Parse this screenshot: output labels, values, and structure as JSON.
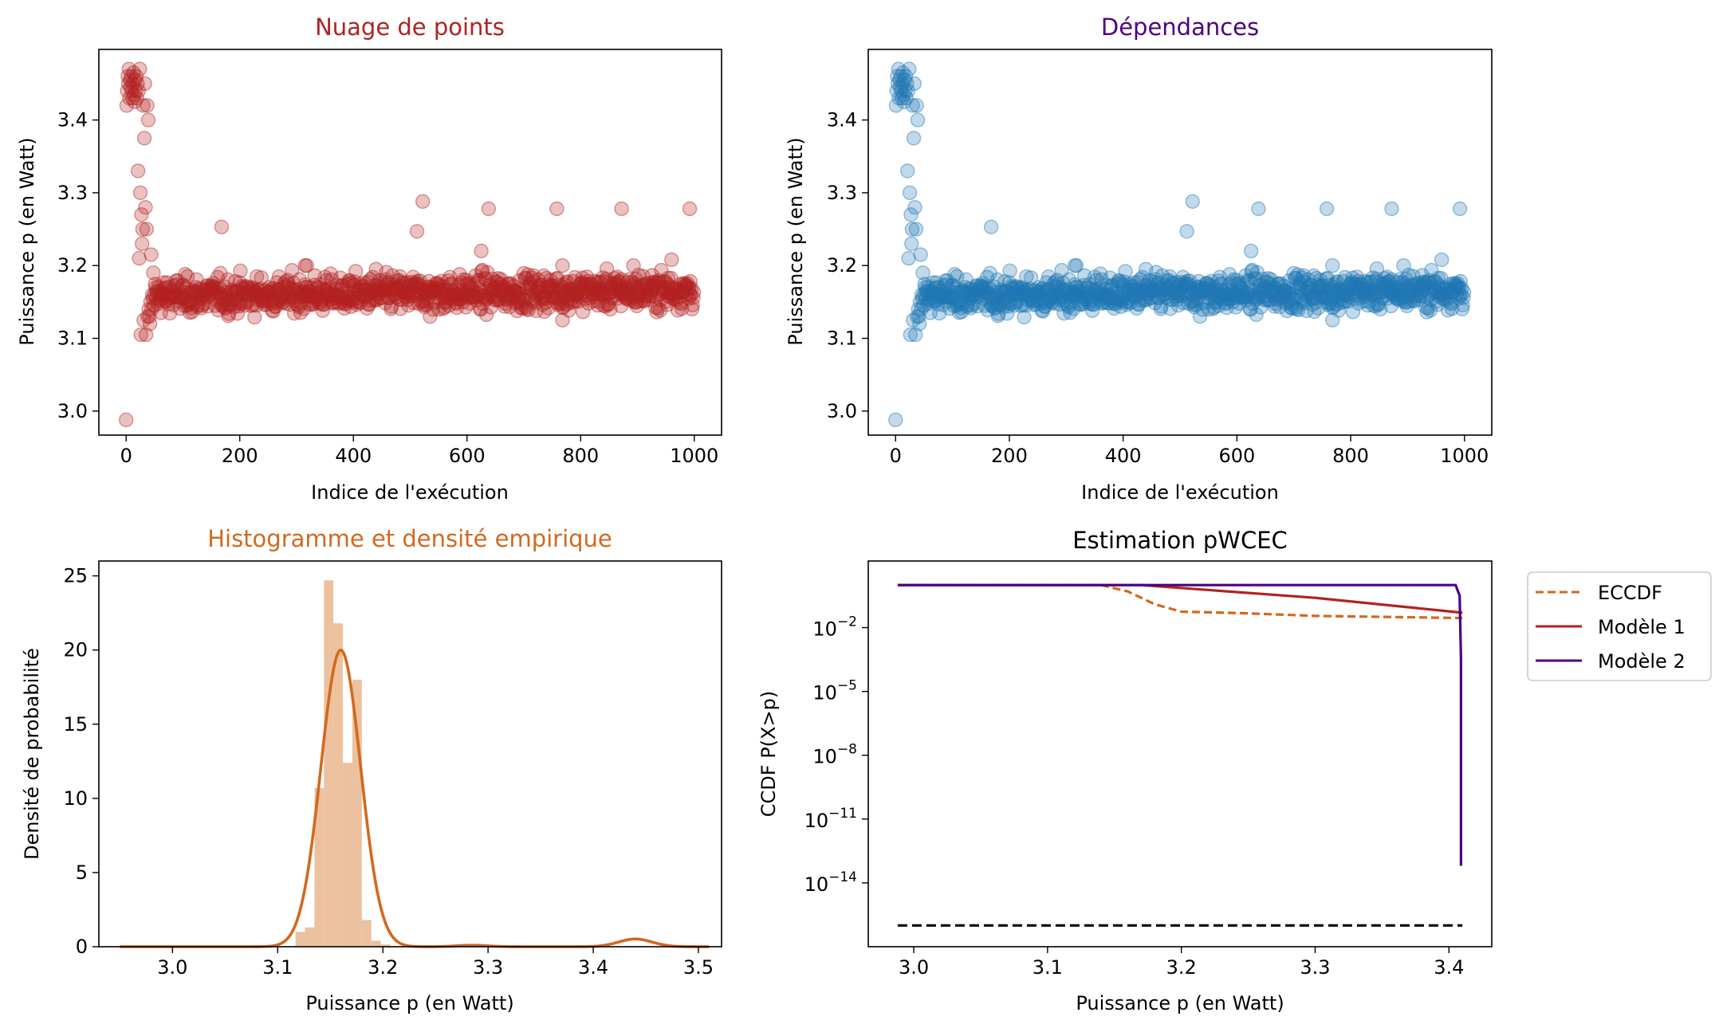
{
  "colors": {
    "scatter_red": "#b22222",
    "scatter_blue": "#1f77b4",
    "orange": "#d2691e",
    "hist_fill": "#ecc19f",
    "purple": "#4b0082",
    "black": "#000000",
    "title_red": "#b22222",
    "title_purple": "#4b0082",
    "title_orange": "#d2691e"
  },
  "chart_data": [
    {
      "type": "scatter",
      "title": "Nuage de points",
      "xlabel": "Indice de l'exécution",
      "ylabel": "Puissance p (en Watt)",
      "xlim": [
        -48,
        1048
      ],
      "ylim": [
        2.967,
        3.497
      ],
      "xticks": [
        0,
        200,
        400,
        600,
        800,
        1000
      ],
      "yticks": [
        3.0,
        3.1,
        3.2,
        3.3,
        3.4
      ],
      "ytick_labels": [
        "3.0",
        "3.1",
        "3.2",
        "3.3",
        "3.4"
      ],
      "n_points": 1000,
      "bulk_center": 3.158,
      "bulk_spread": 0.012,
      "early_points": [
        [
          0,
          2.988
        ],
        [
          1,
          3.42
        ],
        [
          2,
          3.44
        ],
        [
          3,
          3.46
        ],
        [
          4,
          3.45
        ],
        [
          5,
          3.47
        ],
        [
          6,
          3.43
        ],
        [
          7,
          3.455
        ],
        [
          8,
          3.445
        ],
        [
          9,
          3.46
        ],
        [
          10,
          3.44
        ],
        [
          11,
          3.43
        ],
        [
          12,
          3.45
        ],
        [
          13,
          3.465
        ],
        [
          14,
          3.435
        ],
        [
          15,
          3.425
        ],
        [
          16,
          3.455
        ],
        [
          17,
          3.44
        ],
        [
          18,
          3.46
        ],
        [
          19,
          3.43
        ],
        [
          20,
          3.45
        ],
        [
          21,
          3.33
        ],
        [
          22,
          3.44
        ],
        [
          23,
          3.21
        ],
        [
          24,
          3.47
        ],
        [
          25,
          3.3
        ],
        [
          26,
          3.105
        ],
        [
          27,
          3.27
        ],
        [
          28,
          3.23
        ],
        [
          29,
          3.25
        ],
        [
          30,
          3.42
        ],
        [
          31,
          3.125
        ],
        [
          32,
          3.375
        ],
        [
          33,
          3.45
        ],
        [
          34,
          3.28
        ],
        [
          35,
          3.105
        ],
        [
          36,
          3.25
        ],
        [
          37,
          3.42
        ],
        [
          38,
          3.13
        ],
        [
          39,
          3.4
        ],
        [
          40,
          3.14
        ],
        [
          41,
          3.13
        ],
        [
          42,
          3.12
        ],
        [
          43,
          3.15
        ],
        [
          44,
          3.215
        ],
        [
          45,
          3.14
        ],
        [
          46,
          3.16
        ],
        [
          47,
          3.155
        ],
        [
          48,
          3.19
        ],
        [
          49,
          3.145
        ],
        [
          50,
          3.16
        ]
      ],
      "outliers": [
        [
          168,
          3.253
        ],
        [
          512,
          3.247
        ],
        [
          522,
          3.288
        ],
        [
          625,
          3.22
        ],
        [
          638,
          3.278
        ],
        [
          758,
          3.278
        ],
        [
          872,
          3.278
        ],
        [
          992,
          3.278
        ],
        [
          768,
          3.2
        ],
        [
          893,
          3.2
        ],
        [
          960,
          3.208
        ],
        [
          318,
          3.2
        ],
        [
          768,
          3.125
        ],
        [
          315,
          3.2
        ],
        [
          440,
          3.195
        ],
        [
          535,
          3.13
        ]
      ]
    },
    {
      "type": "scatter",
      "title": "Dépendances",
      "xlabel": "Indice de l'exécution",
      "ylabel": "Puissance p (en Watt)",
      "xlim": [
        -48,
        1048
      ],
      "ylim": [
        2.967,
        3.497
      ],
      "xticks": [
        0,
        200,
        400,
        600,
        800,
        1000
      ],
      "yticks": [
        3.0,
        3.1,
        3.2,
        3.3,
        3.4
      ],
      "ytick_labels": [
        "3.0",
        "3.1",
        "3.2",
        "3.3",
        "3.4"
      ],
      "note_same_data_as": 0
    },
    {
      "type": "bar",
      "title": "Histogramme et densité empirique",
      "xlabel": "Puissance p (en Watt)",
      "ylabel": "Densité de probabilité",
      "xlim": [
        2.93,
        3.522
      ],
      "ylim": [
        0,
        26
      ],
      "xticks": [
        3.0,
        3.1,
        3.2,
        3.3,
        3.4,
        3.5
      ],
      "xtick_labels": [
        "3.0",
        "3.1",
        "3.2",
        "3.3",
        "3.4",
        "3.5"
      ],
      "yticks": [
        0,
        5,
        10,
        15,
        20,
        25
      ],
      "bins": [
        [
          3.117,
          3.126,
          1.0
        ],
        [
          3.126,
          3.135,
          1.3
        ],
        [
          3.135,
          3.144,
          10.7
        ],
        [
          3.144,
          3.153,
          24.7
        ],
        [
          3.153,
          3.162,
          21.8
        ],
        [
          3.162,
          3.171,
          12.4
        ],
        [
          3.171,
          3.18,
          18.0
        ],
        [
          3.18,
          3.189,
          1.8
        ],
        [
          3.189,
          3.198,
          0.4
        ],
        [
          3.198,
          3.207,
          0.15
        ],
        [
          3.207,
          3.216,
          0.05
        ]
      ],
      "density_curve": {
        "main_mean": 3.16,
        "main_sigma": 0.0189,
        "main_peak": 20.0,
        "bump1_mean": 3.285,
        "bump1_sigma": 0.015,
        "bump1_peak": 0.1,
        "bump2_mean": 3.44,
        "bump2_sigma": 0.016,
        "bump2_peak": 0.52,
        "x_range": [
          2.95,
          3.51
        ]
      }
    },
    {
      "type": "line",
      "title": "Estimation pWCEC",
      "xlabel": "Puissance p (en Watt)",
      "ylabel": "CCDF P(X>p)",
      "xlim": [
        2.966,
        3.432
      ],
      "log_ylim": [
        -17,
        1.13
      ],
      "yscale": "log",
      "xticks": [
        3.0,
        3.1,
        3.2,
        3.3,
        3.4
      ],
      "xtick_labels": [
        "3.0",
        "3.1",
        "3.2",
        "3.3",
        "3.4"
      ],
      "ytick_labels": [
        {
          "exp": -2,
          "base": "10",
          "pow": "−2"
        },
        {
          "exp": -5,
          "base": "10",
          "pow": "−5"
        },
        {
          "exp": -8,
          "base": "10",
          "pow": "−8"
        },
        {
          "exp": -11,
          "base": "10",
          "pow": "−11"
        },
        {
          "exp": -14,
          "base": "10",
          "pow": "−14"
        }
      ],
      "legend_position": "outside-right",
      "series": [
        {
          "name": "ECCDF",
          "style": "dashed",
          "points": [
            [
              2.988,
              0.0
            ],
            [
              3.14,
              0.0
            ],
            [
              3.16,
              -0.3
            ],
            [
              3.18,
              -0.9
            ],
            [
              3.2,
              -1.25
            ],
            [
              3.25,
              -1.33
            ],
            [
              3.3,
              -1.45
            ],
            [
              3.41,
              -1.55
            ]
          ]
        },
        {
          "name": "Modèle 1",
          "style": "solid",
          "points": [
            [
              2.988,
              0.0
            ],
            [
              3.17,
              0.0
            ],
            [
              3.3,
              -0.6
            ],
            [
              3.41,
              -1.3
            ]
          ]
        },
        {
          "name": "Modèle 2",
          "style": "solid",
          "points": [
            [
              2.988,
              0.0
            ],
            [
              3.405,
              0.0
            ],
            [
              3.408,
              -0.5
            ],
            [
              3.409,
              -3.5
            ],
            [
              3.409,
              -13.2
            ]
          ]
        },
        {
          "name": "",
          "style": "dashed",
          "points": [
            [
              2.988,
              -16.0
            ],
            [
              3.41,
              -16.0
            ]
          ]
        }
      ]
    }
  ]
}
